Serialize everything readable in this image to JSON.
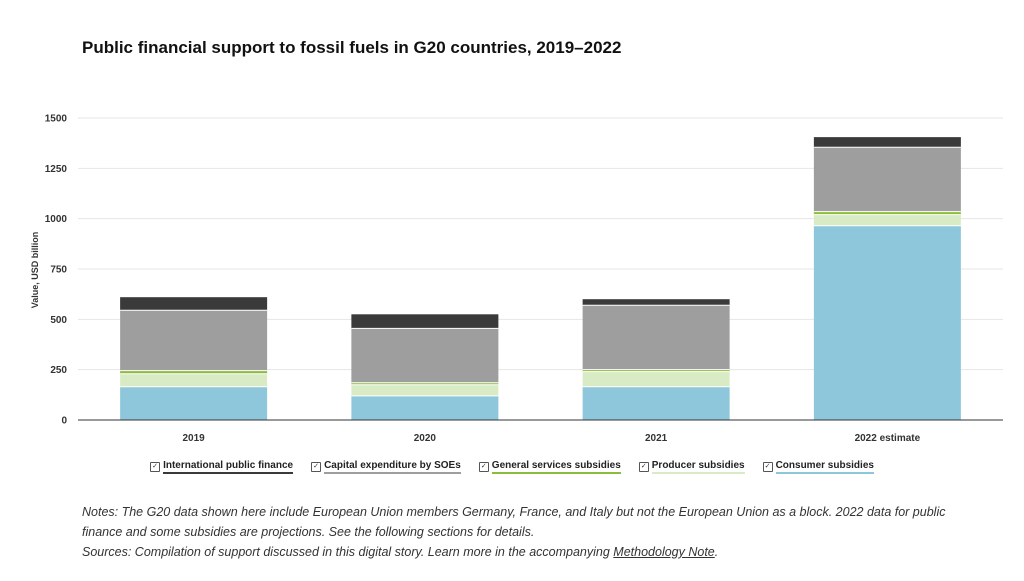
{
  "title": "Public financial support to fossil fuels in G20 countries, 2019–2022",
  "chart_data": {
    "type": "bar",
    "stacked": true,
    "categories": [
      "2019",
      "2020",
      "2021",
      "2022 estimate"
    ],
    "ylabel": "Value, USD billion",
    "xlabel": "",
    "ylim": [
      0,
      1500
    ],
    "yticks": [
      0,
      250,
      500,
      750,
      1000,
      1250,
      1500
    ],
    "grid": true,
    "legend_position": "bottom",
    "series": [
      {
        "name": "Consumer subsidies",
        "color": "#8ec7dc",
        "values": [
          165,
          120,
          165,
          965
        ]
      },
      {
        "name": "Producer subsidies",
        "color": "#d9ebc4",
        "values": [
          65,
          55,
          75,
          55
        ]
      },
      {
        "name": "General services subsidies",
        "color": "#8dbb3c",
        "values": [
          15,
          10,
          10,
          15
        ]
      },
      {
        "name": "Capital expenditure by SOEs",
        "color": "#9e9e9e",
        "values": [
          300,
          270,
          320,
          320
        ]
      },
      {
        "name": "International public finance",
        "color": "#3a3a3a",
        "values": [
          65,
          70,
          30,
          50
        ]
      }
    ]
  },
  "legend": [
    {
      "label": "International public finance",
      "color": "#3a3a3a",
      "check": "✓"
    },
    {
      "label": "Capital expenditure by SOEs",
      "color": "#9e9e9e",
      "check": "✓"
    },
    {
      "label": "General services subsidies",
      "color": "#8dbb3c",
      "check": "✓"
    },
    {
      "label": "Producer subsidies",
      "color": "#d9ebc4",
      "check": "✓"
    },
    {
      "label": "Consumer subsidies",
      "color": "#8ec7dc",
      "check": "✓"
    }
  ],
  "notes": {
    "line1": "Notes: The G20 data shown here include European Union members Germany, France, and Italy but not the European Union as a block. 2022 data for public finance and some subsidies are projections. See the following sections for details.",
    "sources_prefix": "Sources: Compilation of support discussed in this digital story. Learn more in the accompanying ",
    "sources_link": "Methodology Note",
    "sources_suffix": "."
  }
}
